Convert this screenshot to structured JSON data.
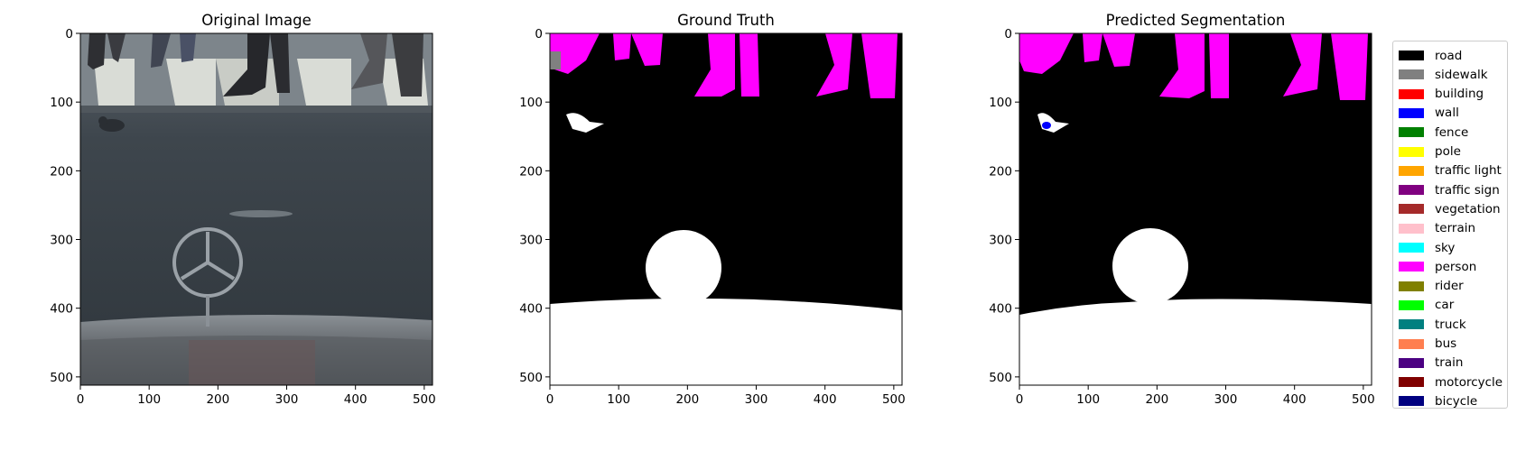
{
  "panels": [
    {
      "title": "Original Image",
      "kind": "photo"
    },
    {
      "title": "Ground Truth",
      "kind": "gt"
    },
    {
      "title": "Predicted Segmentation",
      "kind": "pred"
    }
  ],
  "axis_ticks": [
    "0",
    "100",
    "200",
    "300",
    "400",
    "500"
  ],
  "axis_tick_values": [
    0,
    100,
    200,
    300,
    400,
    500
  ],
  "image_size": 512,
  "legend": [
    {
      "label": "road",
      "color": "#000000"
    },
    {
      "label": "sidewalk",
      "color": "#808080"
    },
    {
      "label": "building",
      "color": "#ff0000"
    },
    {
      "label": "wall",
      "color": "#0000ff"
    },
    {
      "label": "fence",
      "color": "#008000"
    },
    {
      "label": "pole",
      "color": "#ffff00"
    },
    {
      "label": "traffic light",
      "color": "#ffa500"
    },
    {
      "label": "traffic sign",
      "color": "#800080"
    },
    {
      "label": "vegetation",
      "color": "#a52a2a"
    },
    {
      "label": "terrain",
      "color": "#ffc0cb"
    },
    {
      "label": "sky",
      "color": "#00ffff"
    },
    {
      "label": "person",
      "color": "#ff00ff"
    },
    {
      "label": "rider",
      "color": "#808000"
    },
    {
      "label": "car",
      "color": "#00ff00"
    },
    {
      "label": "truck",
      "color": "#008080"
    },
    {
      "label": "bus",
      "color": "#ff7f50"
    },
    {
      "label": "train",
      "color": "#4b0082"
    },
    {
      "label": "motorcycle",
      "color": "#800000"
    },
    {
      "label": "bicycle",
      "color": "#000080"
    }
  ],
  "colors": {
    "road_photo": "#3d454c",
    "crosswalk_stripe": "#d9dcd6",
    "hood": "#6a6f73",
    "person": "#ff00ff",
    "background": "#000000",
    "ego_vehicle": "#ffffff"
  }
}
